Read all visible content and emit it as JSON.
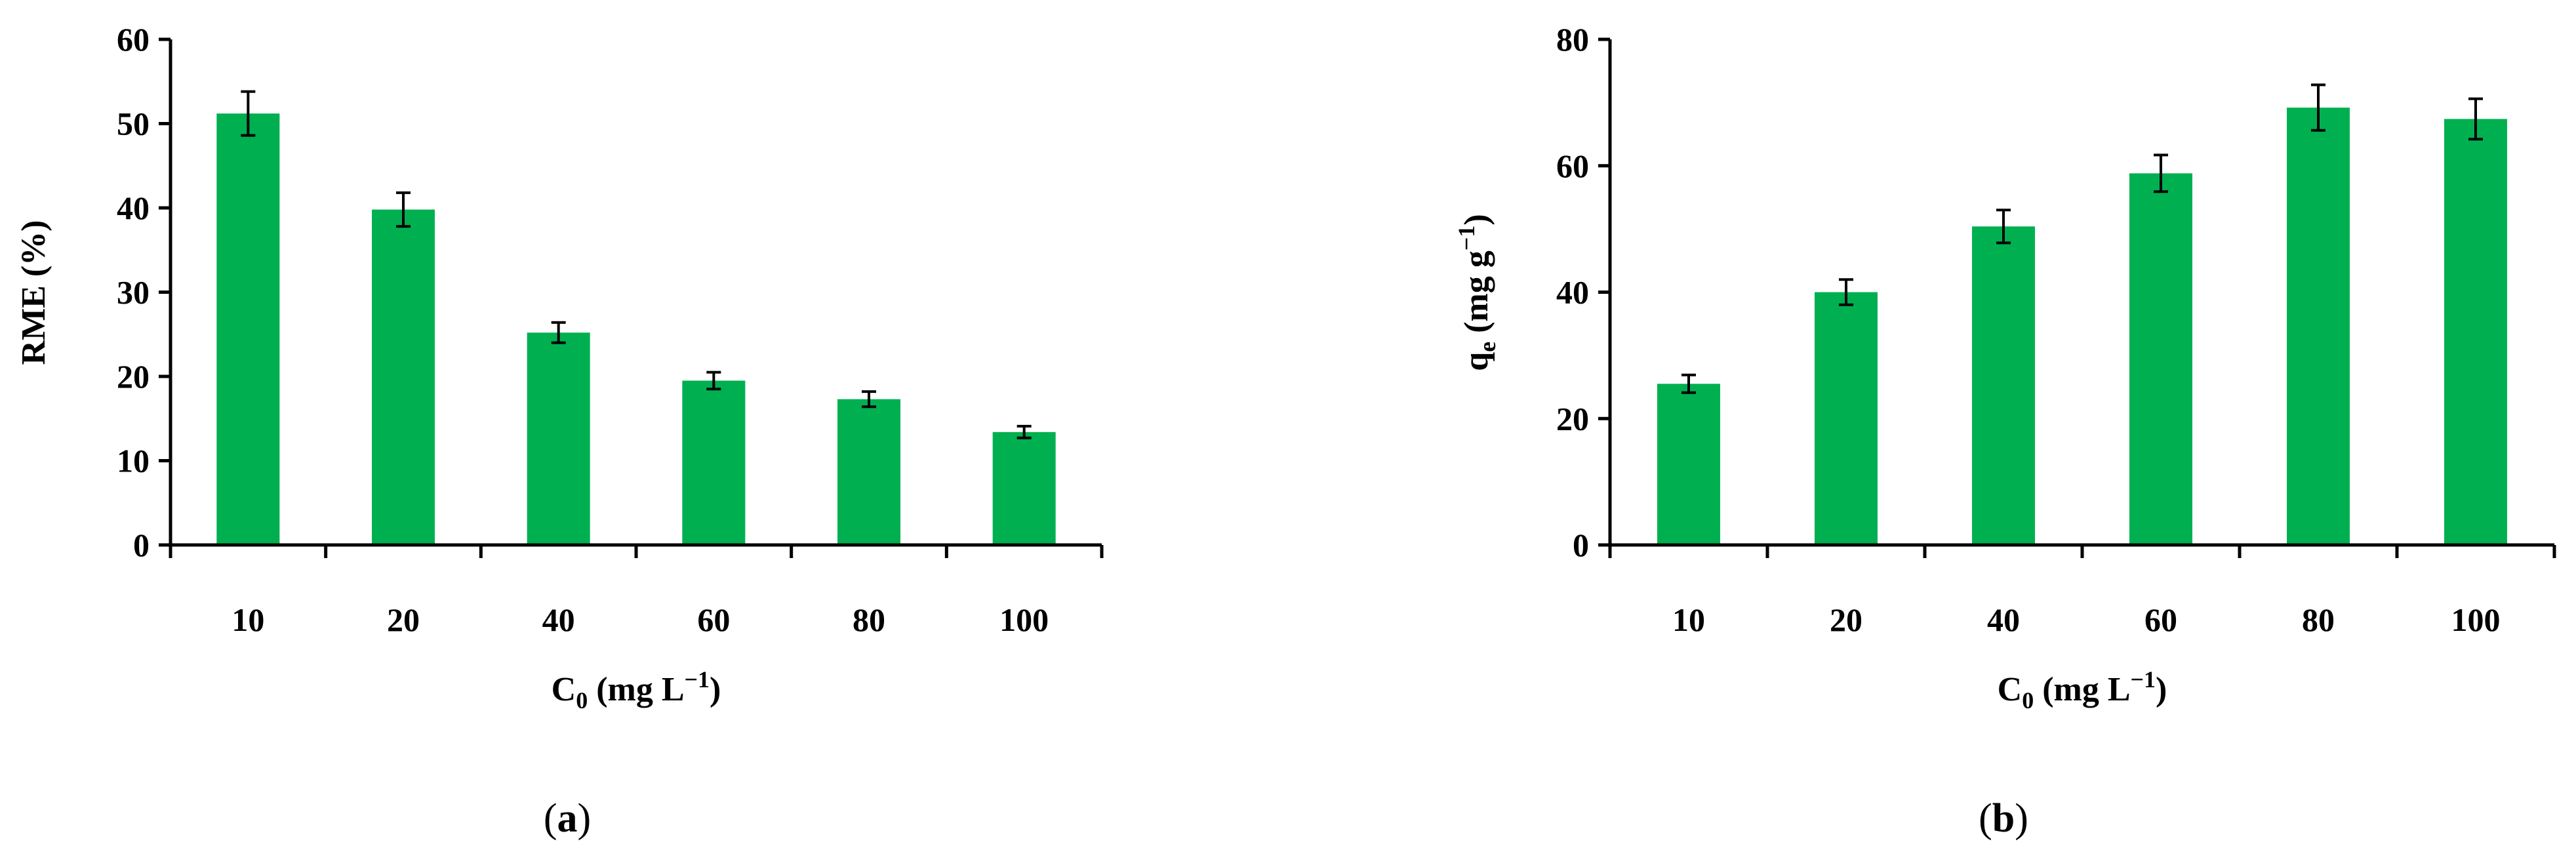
{
  "figure": {
    "bar_color": "#00b050",
    "axis_color": "#000000"
  },
  "chart_data": [
    {
      "type": "bar",
      "panel_label": "a",
      "categories": [
        "10",
        "20",
        "40",
        "60",
        "80",
        "100"
      ],
      "values": [
        51.2,
        39.8,
        25.2,
        19.5,
        17.3,
        13.4
      ],
      "errors": [
        2.6,
        2.0,
        1.2,
        1.0,
        0.9,
        0.7
      ],
      "ylim": [
        0,
        60
      ],
      "yticks": [
        "0",
        "10",
        "20",
        "30",
        "40",
        "50",
        "60"
      ],
      "ylabel": "RME (%)",
      "xlabel": {
        "main": "C",
        "sub": "0",
        "unit_open": " (mg L",
        "sup": "−1",
        "unit_close": ")"
      },
      "grid": false
    },
    {
      "type": "bar",
      "panel_label": "b",
      "categories": [
        "10",
        "20",
        "40",
        "60",
        "80",
        "100"
      ],
      "values": [
        25.5,
        40.0,
        50.4,
        58.8,
        69.2,
        67.4
      ],
      "errors": [
        1.4,
        2.0,
        2.6,
        2.9,
        3.6,
        3.2
      ],
      "ylim": [
        0,
        80
      ],
      "yticks": [
        "0",
        "20",
        "40",
        "60",
        "80"
      ],
      "ylabel": {
        "main": "q",
        "sub": "e",
        "unit_open": " (mg g",
        "sup": "−1",
        "unit_close": ")"
      },
      "xlabel": {
        "main": "C",
        "sub": "0",
        "unit_open": " (mg L",
        "sup": "−1",
        "unit_close": ")"
      },
      "grid": false
    }
  ]
}
